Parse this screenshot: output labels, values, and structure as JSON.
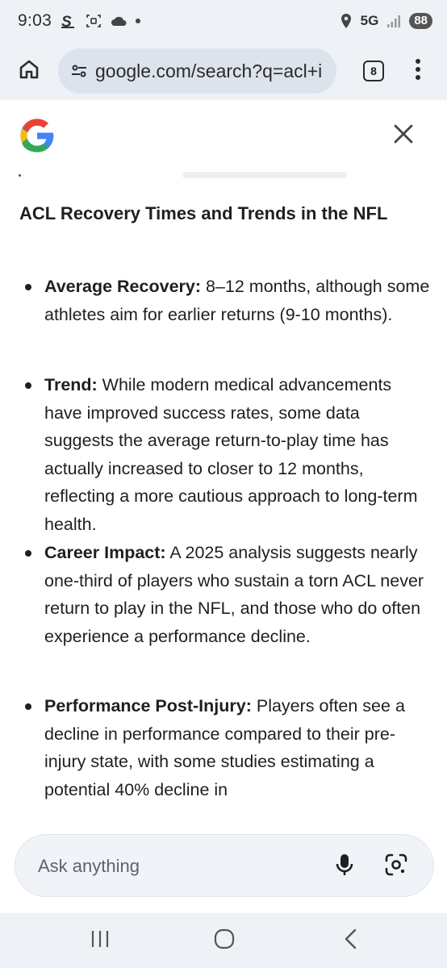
{
  "status_bar": {
    "time": "9:03",
    "network": "5G",
    "battery": "88",
    "icons": [
      "s-app-icon",
      "screenshot-icon",
      "cloud-icon",
      "notification-dot",
      "location-icon",
      "signal-icon"
    ]
  },
  "browser": {
    "url": "google.com/search?q=acl+i",
    "tab_count": "8",
    "icons": [
      "home-icon",
      "site-settings-icon",
      "tab-switcher-icon",
      "more-vert-icon"
    ]
  },
  "panel": {
    "logo": "Google G logo",
    "close_icon": "close-icon"
  },
  "article": {
    "heading": "ACL Recovery Times and Trends in the NFL",
    "bullets": [
      {
        "term": "Average Recovery:",
        "text": " 8–12 months, although some athletes aim for earlier returns (9-10 months)."
      },
      {
        "term": "Trend:",
        "text": " While modern medical advancements have improved success rates, some data suggests the average return-to-play time has actually increased to closer to 12 months, reflecting a more cautious approach to long-term health."
      },
      {
        "term": "Career Impact:",
        "text": " A 2025 analysis suggests nearly one-third of players who sustain a torn ACL never return to play in the NFL, and those who do often experience a performance decline."
      },
      {
        "term": "Performance Post-Injury:",
        "text": " Players often see a decline in performance compared to their pre-injury state, with some studies estimating a potential 40% decline in"
      }
    ]
  },
  "ask_bar": {
    "placeholder": "Ask anything",
    "icons": [
      "mic-icon",
      "google-lens-icon"
    ]
  },
  "nav_bar": {
    "icons": [
      "recent-apps-icon",
      "home-nav-icon",
      "back-icon"
    ]
  }
}
